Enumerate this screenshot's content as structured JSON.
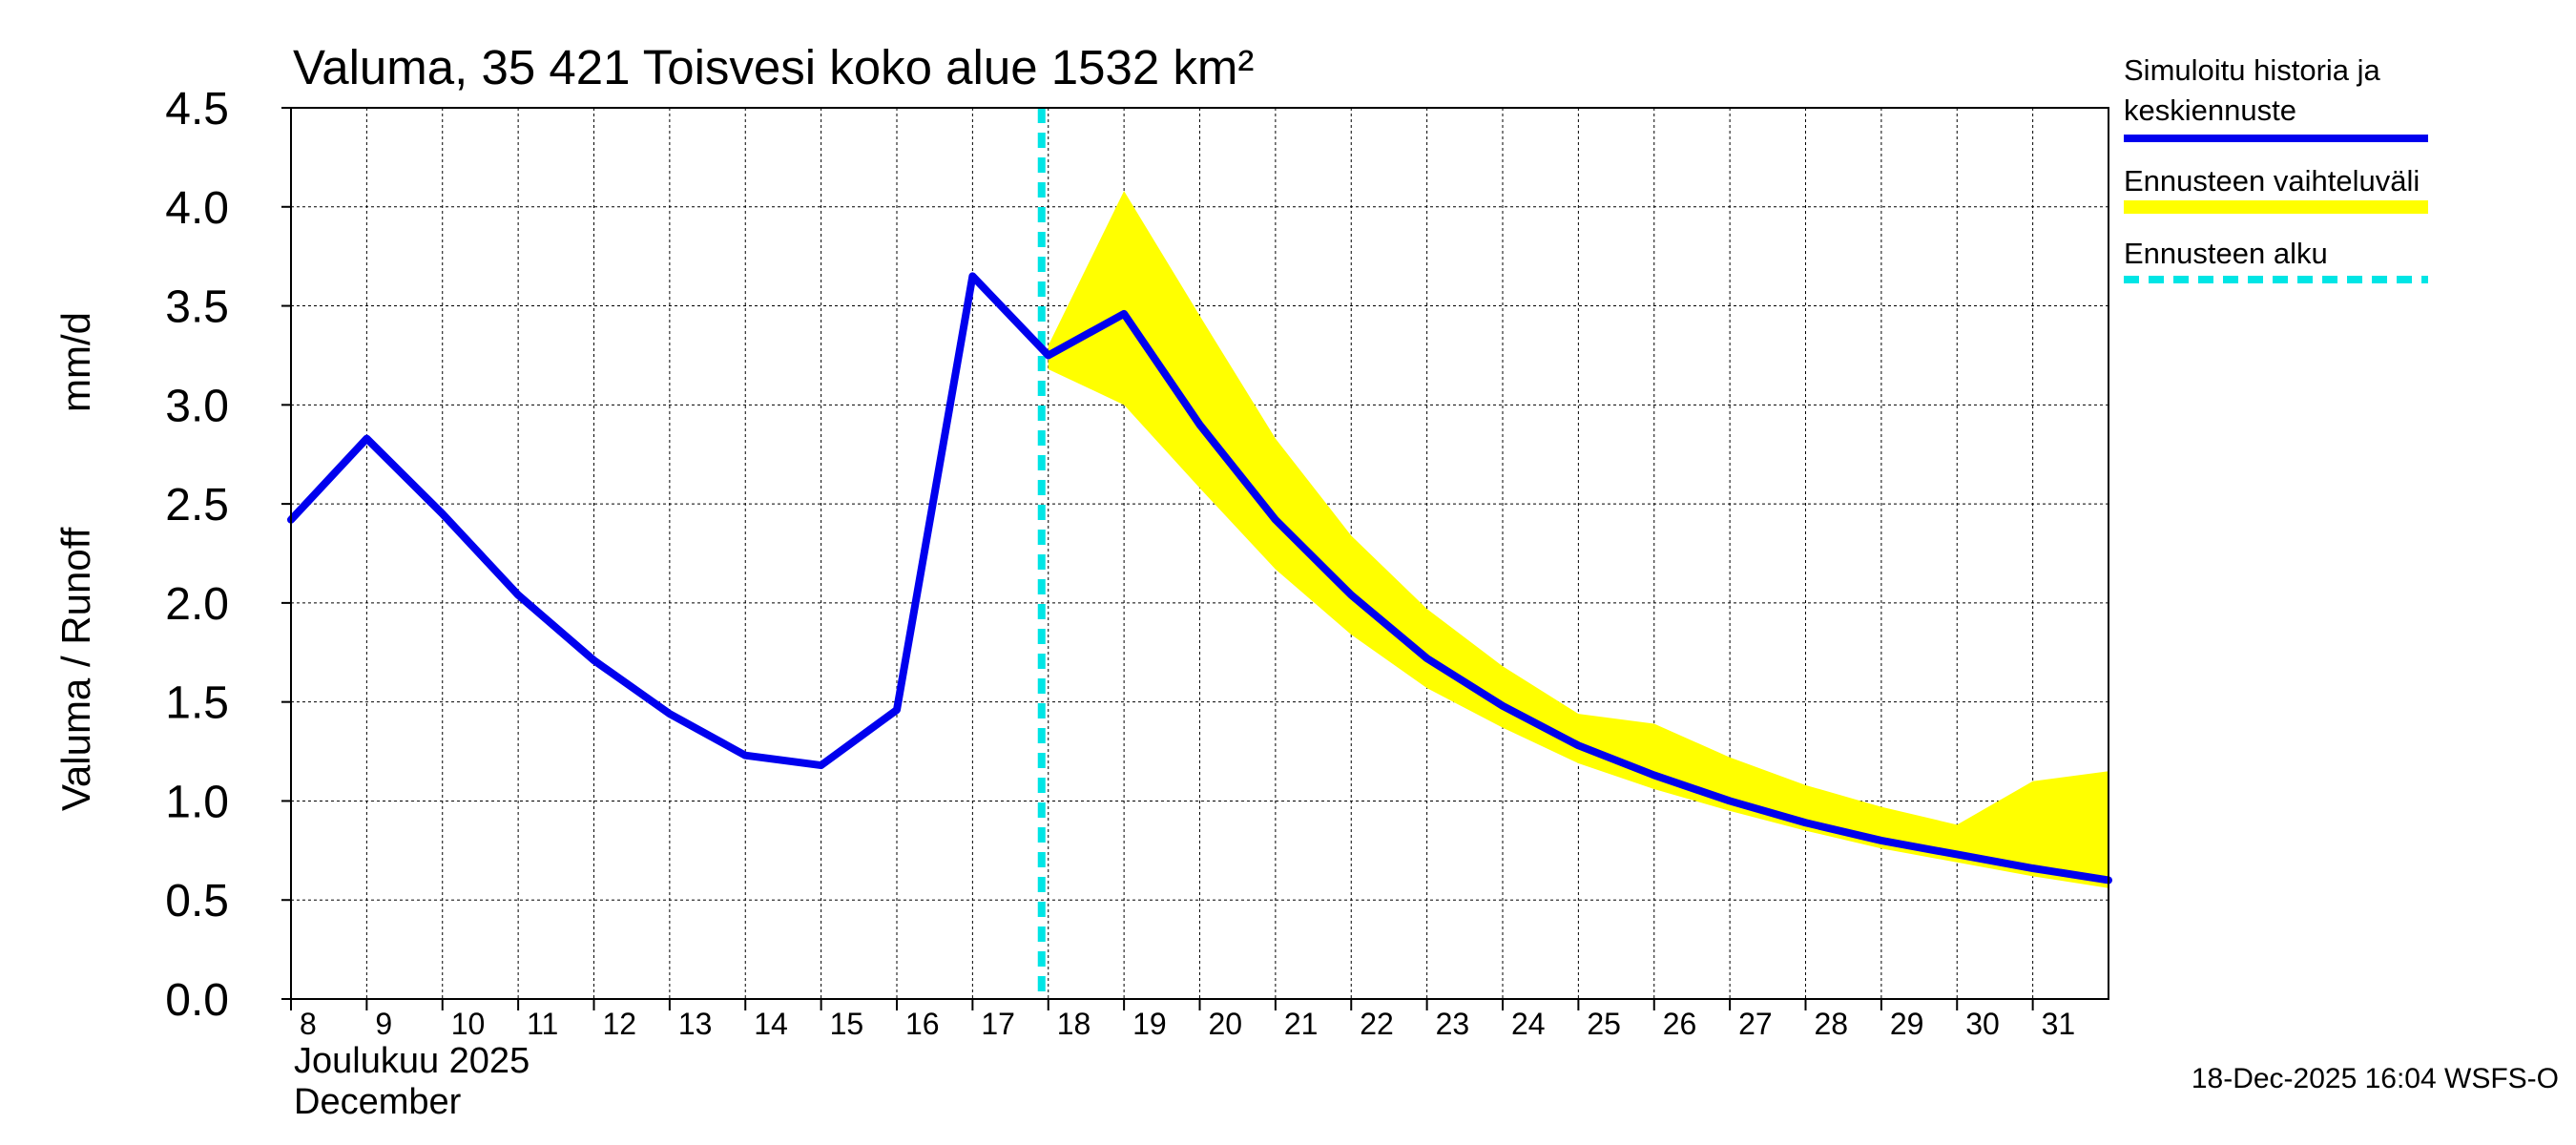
{
  "chart_data": {
    "type": "line",
    "title": "Valuma, 35 421 Toisvesi koko alue 1532 km²",
    "ylabel_left": "Valuma / Runoff",
    "ylabel_right": "mm/d",
    "ylim": [
      0,
      4.5
    ],
    "yticks": [
      "0.0",
      "0.5",
      "1.0",
      "1.5",
      "2.0",
      "2.5",
      "3.0",
      "3.5",
      "4.0",
      "4.5"
    ],
    "xlim": [
      8,
      32
    ],
    "xticks": [
      "8",
      "9",
      "10",
      "11",
      "12",
      "13",
      "14",
      "15",
      "16",
      "17",
      "18",
      "19",
      "20",
      "21",
      "22",
      "23",
      "24",
      "25",
      "26",
      "27",
      "28",
      "29",
      "30",
      "31"
    ],
    "month_label_fi": "Joulukuu  2025",
    "month_label_en": "December",
    "grid": true,
    "forecast_start": 18,
    "series": [
      {
        "name": "Simuloitu historia ja keskiennuste",
        "color": "#0000ee",
        "x": [
          8,
          9,
          10,
          11,
          12,
          13,
          14,
          15,
          16,
          17,
          18,
          19,
          20,
          21,
          22,
          23,
          24,
          25,
          26,
          27,
          28,
          29,
          30,
          31,
          32
        ],
        "y": [
          2.42,
          2.83,
          2.45,
          2.04,
          1.71,
          1.44,
          1.23,
          1.18,
          1.46,
          3.65,
          3.25,
          3.46,
          2.9,
          2.42,
          2.04,
          1.72,
          1.48,
          1.28,
          1.13,
          1.0,
          0.89,
          0.8,
          0.73,
          0.66,
          0.6
        ]
      }
    ],
    "band": {
      "name": "Ennusteen vaihteluväli",
      "color": "#ffff00",
      "x": [
        18,
        19,
        20,
        21,
        22,
        23,
        24,
        25,
        26,
        27,
        28,
        29,
        30,
        31,
        32
      ],
      "upper": [
        3.3,
        4.08,
        3.45,
        2.83,
        2.34,
        1.97,
        1.68,
        1.44,
        1.39,
        1.22,
        1.08,
        0.97,
        0.88,
        1.1,
        1.15
      ],
      "lower": [
        3.18,
        3.0,
        2.58,
        2.17,
        1.84,
        1.57,
        1.37,
        1.19,
        1.06,
        0.95,
        0.85,
        0.76,
        0.69,
        0.62,
        0.56
      ]
    },
    "legend": {
      "position": "top-right",
      "items": [
        {
          "label_line1": "Simuloitu historia ja",
          "label_line2": "keskiennuste",
          "style": "line",
          "color": "#0000ee"
        },
        {
          "label_line1": "Ennusteen vaihteluväli",
          "style": "band",
          "color": "#ffff00"
        },
        {
          "label_line1": "Ennusteen alku",
          "style": "dashed",
          "color": "#00e5e5"
        }
      ]
    },
    "footer": "18-Dec-2025 16:04 WSFS-O"
  }
}
